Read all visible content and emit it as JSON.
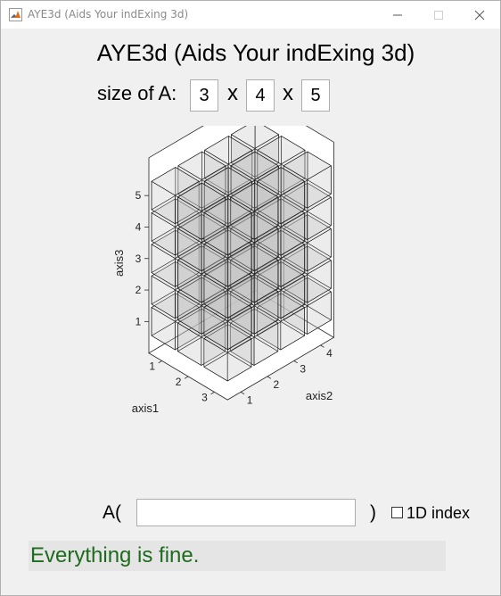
{
  "window": {
    "title": "AYE3d (Aids Your indExing 3d)",
    "icon": "matlab-icon",
    "controls": [
      "minimize-icon",
      "maximize-icon",
      "close-icon"
    ]
  },
  "header": {
    "title": "AYE3d (Aids Your indExing 3d)"
  },
  "size": {
    "label": "size of A:",
    "dim1": "3",
    "dim2": "4",
    "dim3": "5",
    "separator": "x"
  },
  "plot": {
    "xlabel": "axis1",
    "ylabel": "axis2",
    "zlabel": "axis3",
    "xticks": [
      "1",
      "2",
      "3"
    ],
    "yticks": [
      "1",
      "2",
      "3",
      "4"
    ],
    "zticks": [
      "1",
      "2",
      "3",
      "4",
      "5"
    ],
    "grid": {
      "nx": 3,
      "ny": 4,
      "nz": 5
    },
    "style": "transparent gray cubes with black edges"
  },
  "index": {
    "prefix": "A(",
    "value": "",
    "suffix": ")",
    "checkbox_label": "1D index",
    "checkbox_checked": false
  },
  "status": {
    "text": "Everything is fine.",
    "color": "#1e6b1e"
  }
}
